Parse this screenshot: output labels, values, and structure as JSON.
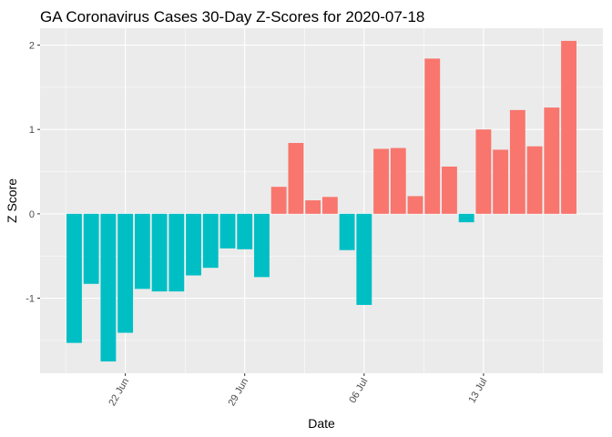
{
  "chart_data": {
    "type": "bar",
    "title": "GA Coronavirus Cases 30-Day Z-Scores for 2020-07-18",
    "xlabel": "Date",
    "ylabel": "Z Score",
    "dates": [
      "2020-06-19",
      "2020-06-20",
      "2020-06-21",
      "2020-06-22",
      "2020-06-23",
      "2020-06-24",
      "2020-06-25",
      "2020-06-26",
      "2020-06-27",
      "2020-06-28",
      "2020-06-29",
      "2020-06-30",
      "2020-07-01",
      "2020-07-02",
      "2020-07-03",
      "2020-07-04",
      "2020-07-05",
      "2020-07-06",
      "2020-07-07",
      "2020-07-08",
      "2020-07-09",
      "2020-07-10",
      "2020-07-11",
      "2020-07-12",
      "2020-07-13",
      "2020-07-14",
      "2020-07-15",
      "2020-07-16",
      "2020-07-17",
      "2020-07-18"
    ],
    "values": [
      -1.53,
      -0.83,
      -1.75,
      -1.41,
      -0.89,
      -0.92,
      -0.92,
      -0.73,
      -0.64,
      -0.41,
      -0.42,
      -0.75,
      0.32,
      0.84,
      0.16,
      0.2,
      -0.43,
      -1.08,
      0.77,
      0.78,
      0.21,
      1.84,
      0.56,
      -0.1,
      1.0,
      0.76,
      1.23,
      0.8,
      1.26,
      2.05
    ],
    "xticks": [
      {
        "date": "2020-06-22",
        "label": "22 Jun"
      },
      {
        "date": "2020-06-29",
        "label": "29 Jun"
      },
      {
        "date": "2020-07-06",
        "label": "06 Jul"
      },
      {
        "date": "2020-07-13",
        "label": "13 Jul"
      }
    ],
    "yticks": [
      {
        "value": -1,
        "label": "-1"
      },
      {
        "value": 0,
        "label": "0"
      },
      {
        "value": 1,
        "label": "1"
      },
      {
        "value": 2,
        "label": "2"
      }
    ],
    "ylim": [
      -1.89,
      2.2
    ],
    "xlim": [
      "2020-06-17",
      "2020-07-20"
    ],
    "grid": true,
    "panel_background": "#ebebeb",
    "colors": {
      "positive": "#f8766d",
      "negative": "#00bfc4"
    },
    "legend": "none"
  }
}
